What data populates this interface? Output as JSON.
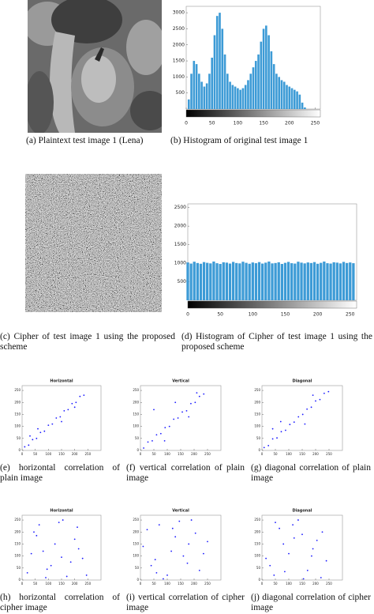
{
  "captions": [
    "(a) Plaintext test image 1 (Lena)",
    "(b) Histogram of original test image 1",
    "(c) Cipher of test image 1 using the proposed scheme",
    "(d) Histogram of Cipher of test image 1 using the proposed scheme",
    "(e) horizontal correlation of plain image",
    "(f) vertical correlation of plain image",
    "(g) diagonal correlation of plain image",
    "(h) horizontal correlation of cipher image",
    "(i) vertical correlation of cipher image",
    "(j) diagonal correlation of cipher image"
  ],
  "chart_data": [
    {
      "type": "bar",
      "x": [
        0,
        5,
        10,
        15,
        20,
        25,
        30,
        35,
        40,
        45,
        50,
        55,
        60,
        65,
        70,
        75,
        80,
        85,
        90,
        95,
        100,
        105,
        110,
        115,
        120,
        125,
        130,
        135,
        140,
        145,
        150,
        155,
        160,
        165,
        170,
        175,
        180,
        185,
        190,
        195,
        200,
        205,
        210,
        215,
        220,
        225,
        230,
        235,
        240,
        245,
        250,
        255
      ],
      "values": [
        0,
        300,
        1100,
        1500,
        1400,
        1100,
        850,
        700,
        800,
        1100,
        1600,
        2300,
        2900,
        3000,
        2500,
        1700,
        1100,
        850,
        750,
        700,
        650,
        600,
        650,
        750,
        900,
        1100,
        1300,
        1500,
        1700,
        2100,
        2500,
        2600,
        2300,
        1800,
        1400,
        1100,
        1000,
        900,
        850,
        750,
        700,
        650,
        600,
        550,
        450,
        200,
        50,
        0,
        0,
        0,
        0,
        0
      ],
      "color": "#3d9bd6",
      "xlim": [
        0,
        260
      ],
      "ylim": [
        0,
        3200
      ],
      "xticks": [
        0,
        50,
        100,
        150,
        200,
        250
      ],
      "yticks": [
        500,
        1000,
        1500,
        2000,
        2500,
        3000
      ]
    },
    {
      "type": "bar",
      "x": [
        0,
        5,
        10,
        15,
        20,
        25,
        30,
        35,
        40,
        45,
        50,
        55,
        60,
        65,
        70,
        75,
        80,
        85,
        90,
        95,
        100,
        105,
        110,
        115,
        120,
        125,
        130,
        135,
        140,
        145,
        150,
        155,
        160,
        165,
        170,
        175,
        180,
        185,
        190,
        195,
        200,
        205,
        210,
        215,
        220,
        225,
        230,
        235,
        240,
        245,
        250,
        255
      ],
      "values": [
        1020,
        990,
        1040,
        1005,
        985,
        1030,
        1010,
        995,
        1045,
        1000,
        980,
        1025,
        1015,
        990,
        1035,
        1005,
        995,
        1040,
        1010,
        985,
        1020,
        1000,
        1030,
        990,
        1015,
        1045,
        995,
        1005,
        1025,
        980,
        1010,
        1035,
        1000,
        990,
        1040,
        1015,
        995,
        1020,
        1005,
        1030,
        985,
        1010,
        1045,
        1000,
        990,
        1025,
        1015,
        995,
        1035,
        1005,
        1020,
        1000
      ],
      "color": "#3d9bd6",
      "xlim": [
        0,
        260
      ],
      "ylim": [
        0,
        2600
      ],
      "xticks": [
        0,
        50,
        100,
        150,
        200,
        250
      ],
      "yticks": [
        500,
        1000,
        1500,
        2000,
        2500
      ]
    },
    {
      "type": "scatter",
      "title": "Horizontal",
      "color": "#1a1aff",
      "xlim": [
        0,
        300
      ],
      "ylim": [
        0,
        270
      ],
      "xticks": [
        0,
        50,
        100,
        150,
        200,
        250
      ],
      "yticks": [
        0,
        50,
        100,
        150,
        200,
        250
      ],
      "x": [
        10,
        25,
        40,
        55,
        70,
        85,
        100,
        115,
        130,
        145,
        160,
        175,
        190,
        205,
        220,
        235,
        60,
        150,
        30,
        200
      ],
      "values": [
        15,
        22,
        45,
        50,
        75,
        80,
        105,
        110,
        135,
        140,
        165,
        170,
        195,
        200,
        225,
        230,
        90,
        120,
        60,
        180
      ]
    },
    {
      "type": "scatter",
      "title": "Vertical",
      "color": "#1a1aff",
      "xlim": [
        0,
        300
      ],
      "ylim": [
        0,
        270
      ],
      "xticks": [
        0,
        50,
        100,
        150,
        200,
        250
      ],
      "yticks": [
        0,
        50,
        100,
        150,
        200,
        250
      ],
      "x": [
        12,
        28,
        44,
        60,
        76,
        92,
        108,
        124,
        140,
        156,
        172,
        188,
        204,
        220,
        236,
        50,
        130,
        90,
        180,
        210
      ],
      "values": [
        10,
        35,
        40,
        65,
        70,
        95,
        100,
        130,
        135,
        160,
        165,
        195,
        200,
        225,
        235,
        170,
        200,
        40,
        140,
        240
      ]
    },
    {
      "type": "scatter",
      "title": "Diagonal",
      "color": "#1a1aff",
      "xlim": [
        0,
        300
      ],
      "ylim": [
        0,
        270
      ],
      "xticks": [
        0,
        50,
        100,
        150,
        200,
        250
      ],
      "yticks": [
        0,
        50,
        100,
        150,
        200,
        250
      ],
      "x": [
        8,
        24,
        40,
        56,
        72,
        88,
        104,
        120,
        136,
        152,
        168,
        184,
        200,
        216,
        232,
        248,
        70,
        160,
        40,
        190
      ],
      "values": [
        12,
        20,
        48,
        52,
        78,
        84,
        108,
        118,
        140,
        150,
        172,
        180,
        206,
        212,
        238,
        245,
        120,
        110,
        90,
        230
      ]
    },
    {
      "type": "scatter",
      "title": "Horizontal",
      "color": "#1a1aff",
      "xlim": [
        0,
        300
      ],
      "ylim": [
        0,
        270
      ],
      "xticks": [
        0,
        50,
        100,
        150,
        200,
        250
      ],
      "yticks": [
        0,
        50,
        100,
        150,
        200,
        250
      ],
      "x": [
        20,
        45,
        80,
        110,
        140,
        170,
        200,
        230,
        35,
        65,
        95,
        125,
        155,
        185,
        215,
        245,
        55,
        150,
        90,
        210
      ],
      "values": [
        30,
        200,
        120,
        60,
        240,
        15,
        170,
        90,
        110,
        230,
        45,
        150,
        250,
        75,
        130,
        20,
        185,
        95,
        10,
        220
      ]
    },
    {
      "type": "scatter",
      "title": "Vertical",
      "color": "#1a1aff",
      "xlim": [
        0,
        300
      ],
      "ylim": [
        0,
        270
      ],
      "xticks": [
        0,
        50,
        100,
        150,
        200,
        250
      ],
      "yticks": [
        0,
        50,
        100,
        150,
        200,
        250
      ],
      "x": [
        10,
        40,
        70,
        100,
        130,
        160,
        190,
        220,
        250,
        25,
        55,
        85,
        115,
        145,
        175,
        205,
        235,
        60,
        120,
        180
      ],
      "values": [
        140,
        60,
        230,
        20,
        180,
        100,
        250,
        40,
        160,
        210,
        85,
        5,
        120,
        245,
        70,
        195,
        110,
        30,
        215,
        150
      ]
    },
    {
      "type": "scatter",
      "title": "Diagonal",
      "color": "#1a1aff",
      "xlim": [
        0,
        300
      ],
      "ylim": [
        0,
        270
      ],
      "xticks": [
        0,
        50,
        100,
        150,
        200,
        250
      ],
      "yticks": [
        0,
        50,
        100,
        150,
        200,
        250
      ],
      "x": [
        15,
        50,
        85,
        120,
        155,
        190,
        225,
        30,
        65,
        100,
        135,
        170,
        205,
        240,
        45,
        80,
        115,
        150,
        185,
        220
      ],
      "values": [
        90,
        240,
        35,
        175,
        5,
        130,
        200,
        60,
        215,
        110,
        250,
        40,
        165,
        80,
        20,
        150,
        230,
        190,
        100,
        10
      ]
    }
  ]
}
